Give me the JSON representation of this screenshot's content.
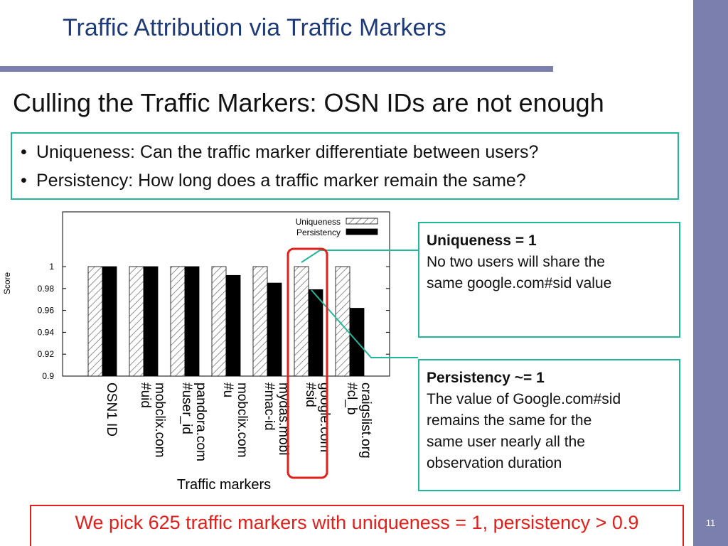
{
  "slide": {
    "title": "Traffic Attribution via Traffic Markers",
    "subtitle": "Culling the Traffic Markers: OSN IDs are not enough",
    "page_number": "11",
    "accent_color": "#7b7fad",
    "title_color": "#1f3a78",
    "box_color": "#20b79a",
    "highlight_color": "#e0201b"
  },
  "bullets": [
    "Uniqueness: Can the traffic marker differentiate between users?",
    "Persistency: How long does a traffic marker remain the same?"
  ],
  "notes": {
    "uniqueness": {
      "head": "Uniqueness = 1",
      "lines": [
        "No two users will share the",
        "same google.com#sid value"
      ]
    },
    "persistency": {
      "head": "Persistency",
      "head_suffix": " ~= 1",
      "lines": [
        "The value of Google.com#sid",
        "remains the same for the",
        "same user nearly all the",
        "observation duration"
      ]
    }
  },
  "conclusion": "We pick 625 traffic markers with uniqueness = 1, persistency > 0.9",
  "chart_data": {
    "type": "bar",
    "xlabel": "Traffic markers",
    "ylabel": "Score",
    "ylim": [
      0.9,
      1.0
    ],
    "yticks": [
      0.9,
      0.92,
      0.94,
      0.96,
      0.98,
      1
    ],
    "ytick_labels": [
      "0.9",
      "0.92",
      "0.94",
      "0.96",
      "0.98",
      "1"
    ],
    "categories": [
      [
        "OSN1 ID"
      ],
      [
        "mobclix.com",
        "#uid"
      ],
      [
        "pandora.com",
        "#user_id"
      ],
      [
        "mobclix.com",
        "#u"
      ],
      [
        "mydas.mobi",
        "#mac-id"
      ],
      [
        "google.com",
        "#sid"
      ],
      [
        "craigslist.org",
        "#cl_b"
      ]
    ],
    "series": [
      {
        "name": "Uniqueness",
        "values": [
          1,
          1,
          1,
          1,
          1,
          1,
          1
        ],
        "pattern": "hatched"
      },
      {
        "name": "Persistency",
        "values": [
          1,
          1,
          1,
          0.992,
          0.985,
          0.979,
          0.962
        ],
        "pattern": "solid"
      }
    ],
    "legend_position": "top-right",
    "highlighted_category": "google.com #sid",
    "grid": false
  }
}
